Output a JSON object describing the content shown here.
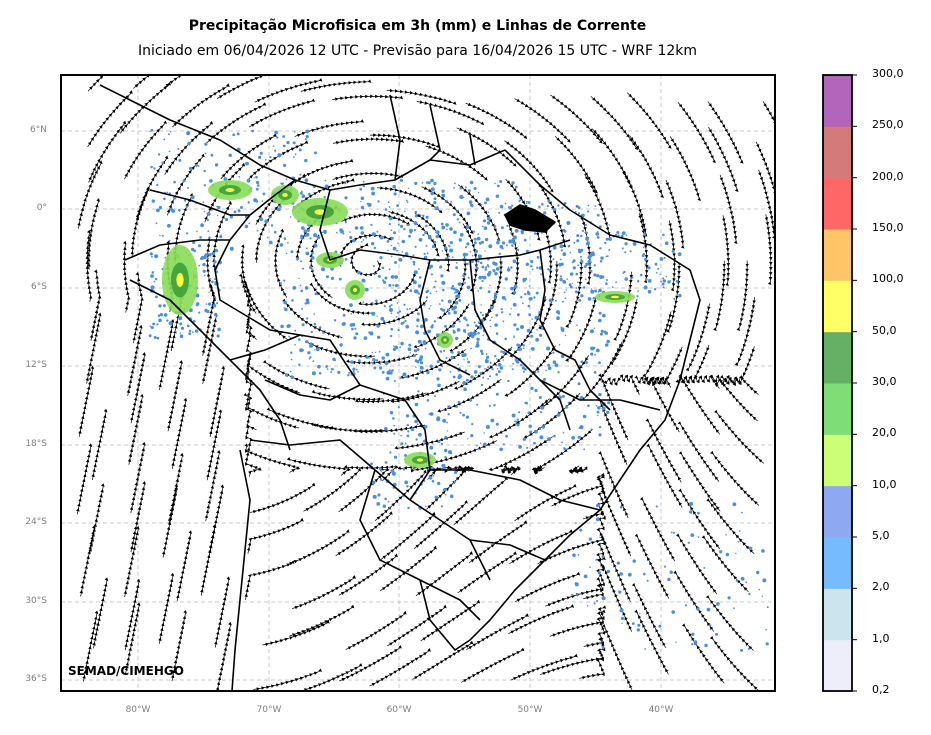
{
  "title": "Precipitação Microfisica em 3h (mm) e Linhas de Corrente",
  "subtitle": "Iniciado em 06/04/2026 12 UTC - Previsão para 16/04/2026 15 UTC - WRF 12km",
  "credit": "SEMAD/CIMEHGO",
  "lat_ticks": [
    "6°N",
    "0°",
    "6°S",
    "12°S",
    "18°S",
    "24°S",
    "30°S",
    "36°S"
  ],
  "lon_ticks": [
    "80°W",
    "70°W",
    "60°W",
    "50°W",
    "40°W"
  ],
  "colorbar": {
    "ticks": [
      "0,2",
      "1,0",
      "2,0",
      "5,0",
      "10,0",
      "20,0",
      "30,0",
      "50,0",
      "100,0",
      "150,0",
      "200,0",
      "250,0",
      "300,0"
    ],
    "colors": [
      "#eeeefa",
      "#cce4ee",
      "#77bbff",
      "#8fa8f2",
      "#ccff77",
      "#7edd77",
      "#66b066",
      "#ffff66",
      "#ffc566",
      "#ff6666",
      "#d47a7a",
      "#b266bb"
    ]
  },
  "precip_colors": {
    "light": "#4a90e2",
    "mid": "#88dd55",
    "heavy": "#ffff44",
    "dark": "#339933"
  }
}
